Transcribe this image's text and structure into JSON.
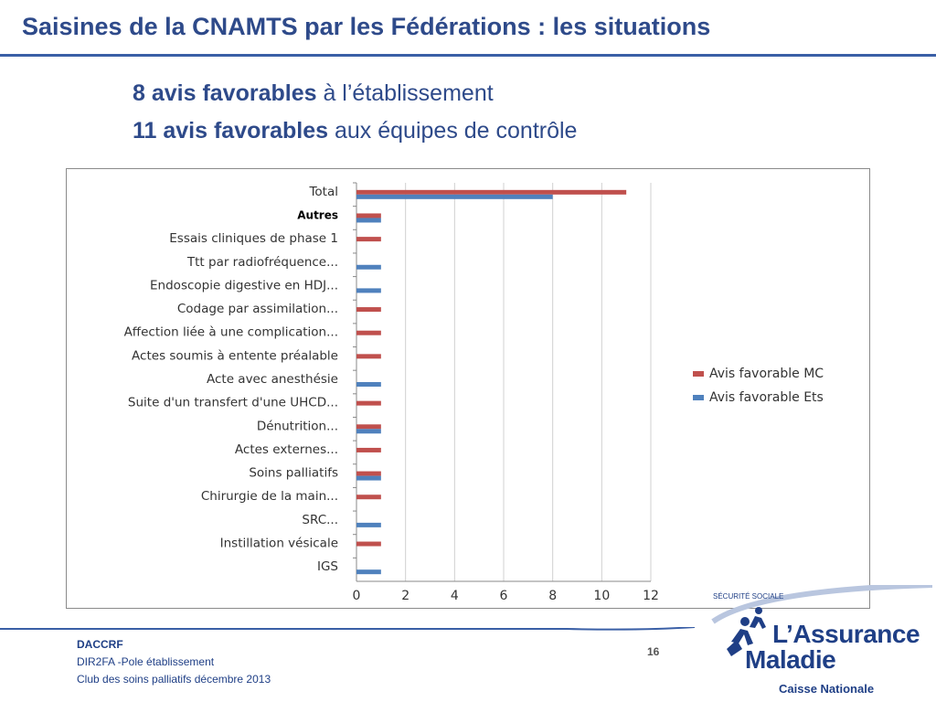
{
  "slide": {
    "title": "Saisines de la CNAMTS par les Fédérations : les situations",
    "line1_bold": "8 avis favorables",
    "line1_rest": " à l’établissement",
    "line2_bold": "11 avis favorables",
    "line2_rest": " aux équipes de contrôle"
  },
  "chart_data": {
    "type": "bar",
    "orientation": "horizontal",
    "categories": [
      "Total",
      "Autres",
      "Essais cliniques de phase 1",
      "Ttt par radiofréquence...",
      "Endoscopie digestive en HDJ...",
      "Codage par assimilation...",
      "Affection liée à une complication...",
      "Actes soumis à entente préalable",
      "Acte avec anesthésie",
      "Suite d'un transfert d'une UHCD...",
      "Dénutrition...",
      "Actes externes...",
      "Soins palliatifs",
      "Chirurgie de la main...",
      "SRC...",
      "Instillation vésicale",
      "IGS"
    ],
    "series": [
      {
        "name": "Avis favorable MC",
        "color": "#c0504d",
        "values": [
          11,
          1,
          1,
          0,
          0,
          1,
          1,
          1,
          0,
          1,
          1,
          1,
          1,
          1,
          0,
          1,
          0
        ]
      },
      {
        "name": "Avis favorable Ets",
        "color": "#4f81bd",
        "values": [
          8,
          1,
          0,
          1,
          1,
          0,
          0,
          0,
          1,
          0,
          1,
          0,
          1,
          0,
          1,
          0,
          1
        ]
      }
    ],
    "xlim": [
      0,
      12
    ],
    "xticks": [
      "0",
      "2",
      "4",
      "6",
      "8",
      "10",
      "12"
    ],
    "grid": "vertical",
    "legend": "right"
  },
  "footer": {
    "org": "DACCRF",
    "dept": "DIR2FA -Pole établissement",
    "event": "Club des soins palliatifs décembre 2013",
    "page": "16"
  },
  "logo": {
    "arc_text": "SÉCURITÉ SOCIALE",
    "name_line1": "L’Assurance",
    "name_line2": "Maladie",
    "subtitle": "Caisse Nationale",
    "icon": "people-figures-icon"
  }
}
